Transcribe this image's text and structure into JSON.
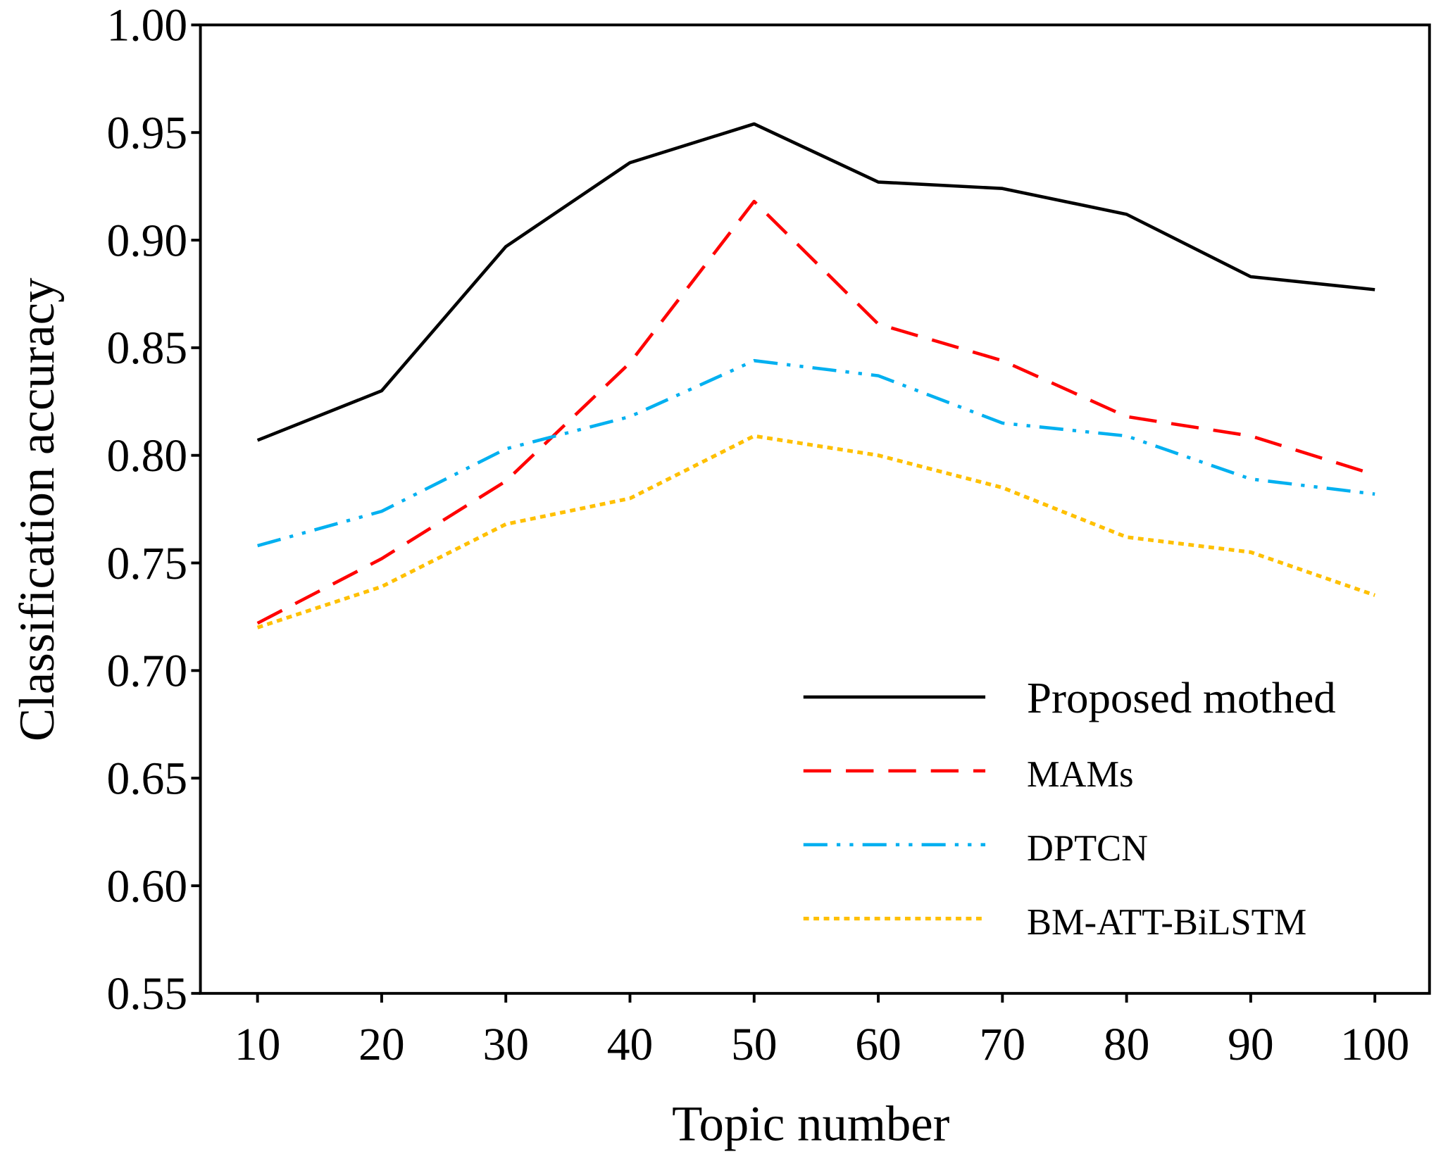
{
  "chart_data": {
    "type": "line",
    "title": "",
    "xlabel": "Topic number",
    "ylabel": "Classification accuracy",
    "x": [
      10,
      20,
      30,
      40,
      50,
      60,
      70,
      80,
      90,
      100
    ],
    "xticks": [
      "10",
      "20",
      "30",
      "40",
      "50",
      "60",
      "70",
      "80",
      "90",
      "100"
    ],
    "yticks": [
      "0.55",
      "0.60",
      "0.65",
      "0.70",
      "0.75",
      "0.80",
      "0.85",
      "0.90",
      "0.95",
      "1.00"
    ],
    "xlim": [
      5.4,
      104.4
    ],
    "ylim": [
      0.55,
      1.0
    ],
    "grid": false,
    "legend_position": "bottom-right",
    "series": [
      {
        "name": "Proposed mothed",
        "color": "#000000",
        "dash": "solid",
        "values": [
          0.807,
          0.83,
          0.897,
          0.936,
          0.954,
          0.927,
          0.924,
          0.912,
          0.883,
          0.877
        ]
      },
      {
        "name": "MAMs",
        "color": "#ff0000",
        "dash": "dashed",
        "values": [
          0.722,
          0.752,
          0.788,
          0.843,
          0.918,
          0.861,
          0.844,
          0.818,
          0.809,
          0.791
        ]
      },
      {
        "name": "DPTCN",
        "color": "#00b0f0",
        "dash": "dash-dot-dot",
        "values": [
          0.758,
          0.774,
          0.803,
          0.818,
          0.844,
          0.837,
          0.815,
          0.809,
          0.789,
          0.782
        ]
      },
      {
        "name": "BM-ATT-BiLSTM",
        "color": "#ffc000",
        "dash": "dotted",
        "values": [
          0.72,
          0.739,
          0.768,
          0.78,
          0.809,
          0.8,
          0.785,
          0.762,
          0.755,
          0.735
        ]
      }
    ]
  }
}
